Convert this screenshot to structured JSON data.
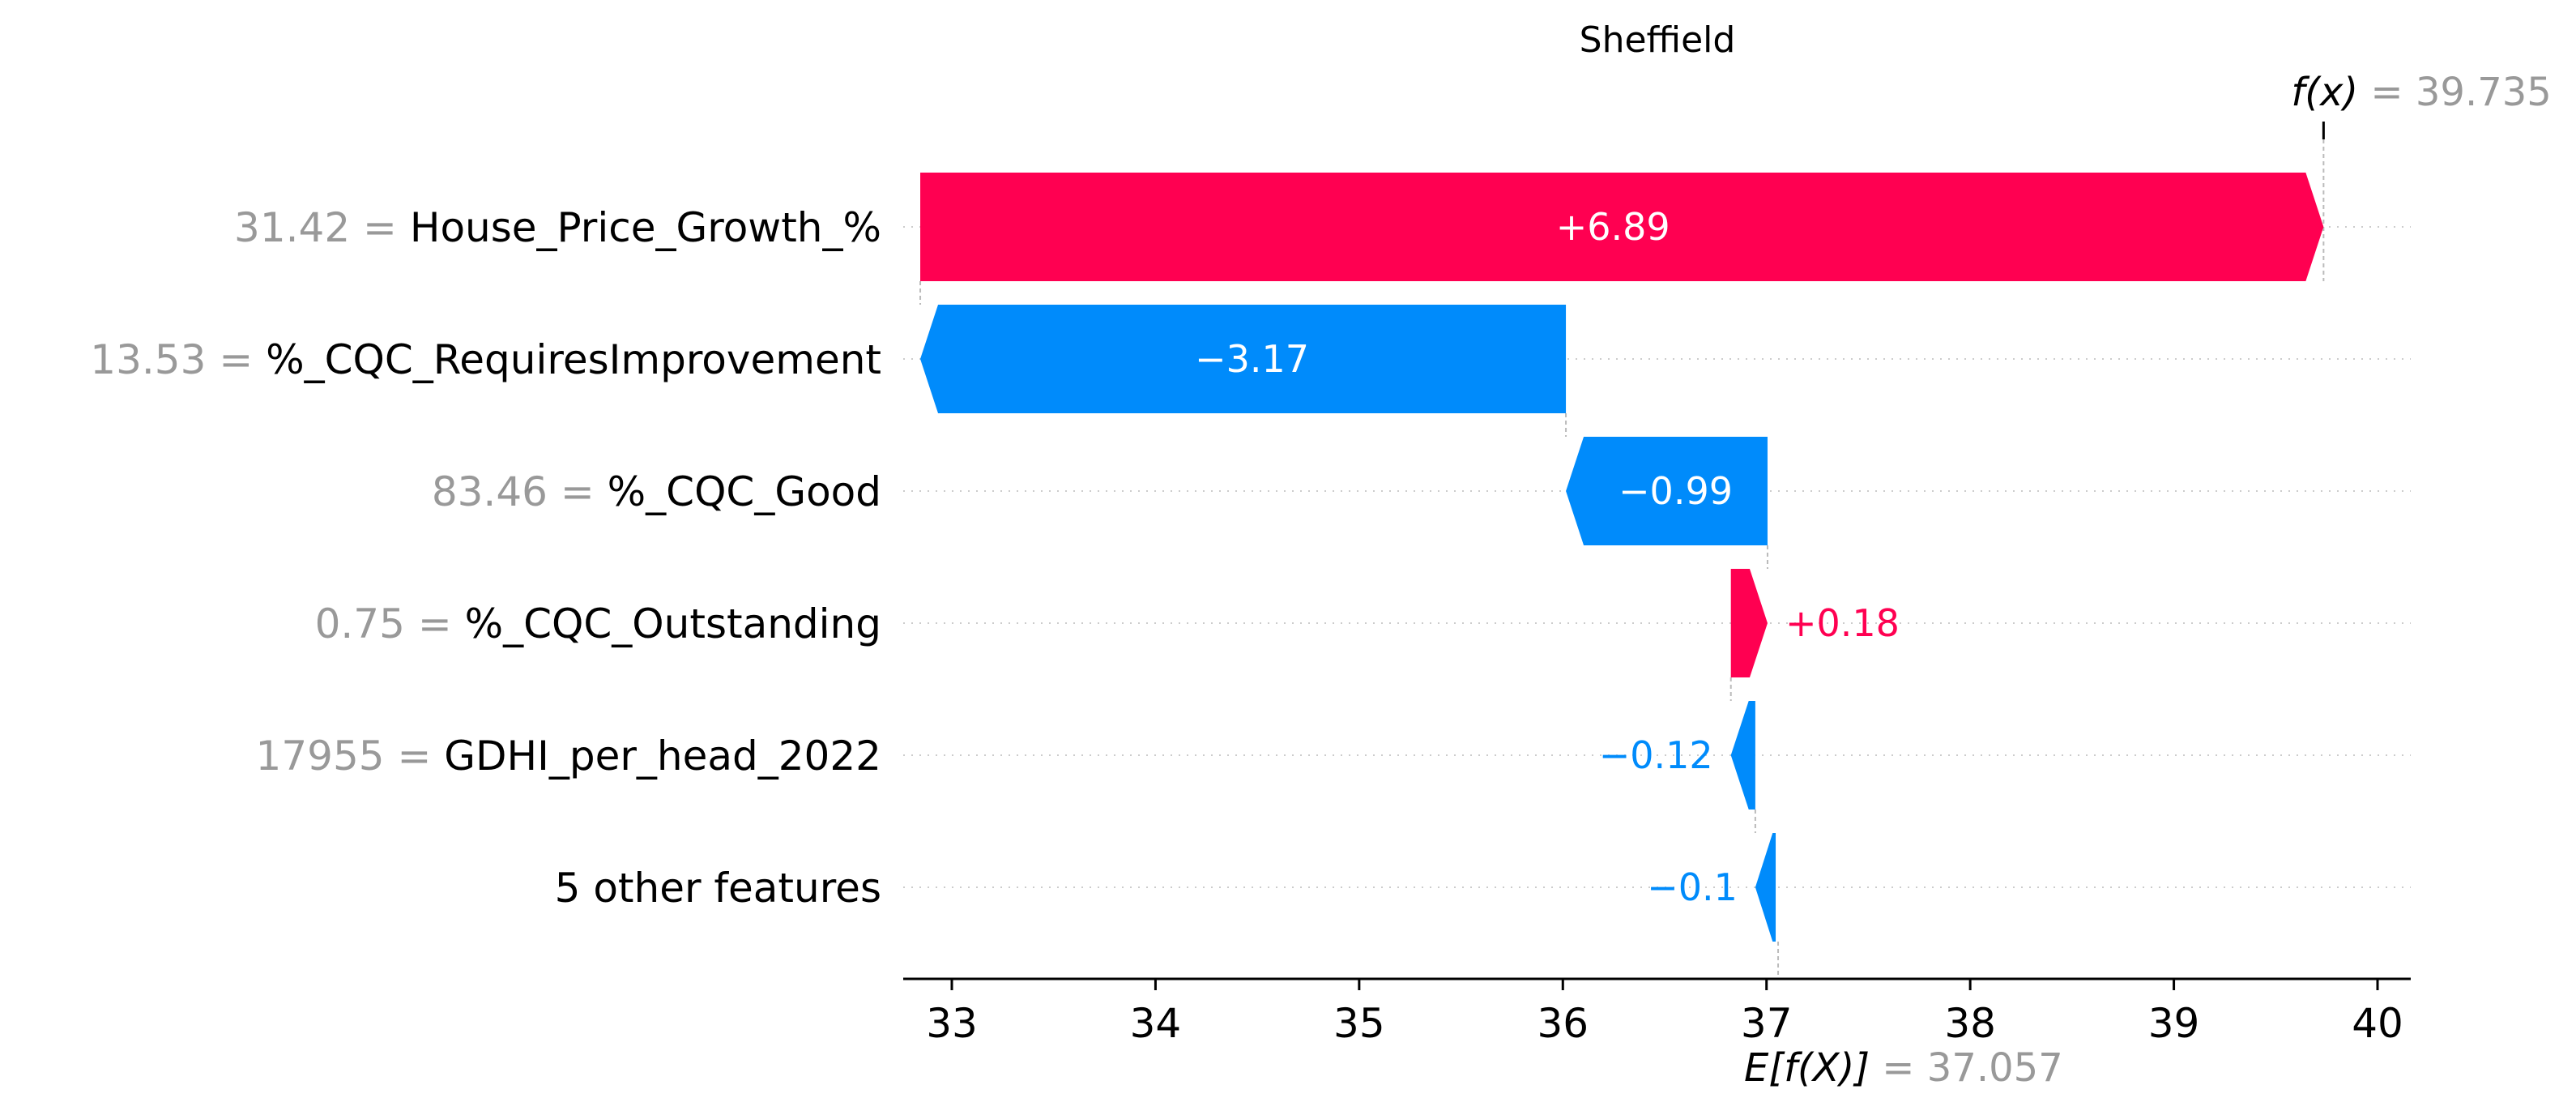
{
  "chart_data": {
    "type": "waterfall",
    "title": "Sheffield",
    "base_value": 37.057,
    "base_value_text": "37.057",
    "output_value": 39.735,
    "output_value_text": "39.735",
    "fx_label": "f(x)",
    "ex_label": "E[f(X)]",
    "equals": "=",
    "xlim": [
      32.8,
      40.15
    ],
    "x_ticks": [
      33,
      34,
      35,
      36,
      37,
      38,
      39,
      40
    ],
    "x_tick_labels": [
      "33",
      "34",
      "35",
      "36",
      "37",
      "38",
      "39",
      "40"
    ],
    "features": [
      {
        "value": "31.42",
        "name": "House_Price_Growth_%",
        "contribution": 6.89,
        "label": "+6.89"
      },
      {
        "value": "13.53",
        "name": "%_CQC_RequiresImprovement",
        "contribution": -3.17,
        "label": "−3.17"
      },
      {
        "value": "83.46",
        "name": "%_CQC_Good",
        "contribution": -0.99,
        "label": "−0.99"
      },
      {
        "value": "0.75",
        "name": "%_CQC_Outstanding",
        "contribution": 0.18,
        "label": "+0.18"
      },
      {
        "value": "17955",
        "name": "GDHI_per_head_2022",
        "contribution": -0.12,
        "label": "−0.12"
      },
      {
        "value": "",
        "name": "5 other features",
        "contribution": -0.1,
        "label": "−0.1"
      }
    ],
    "colors": {
      "positive": "#ff0051",
      "negative": "#008bfb",
      "grid": "#cccccc",
      "axis": "#000000"
    }
  }
}
